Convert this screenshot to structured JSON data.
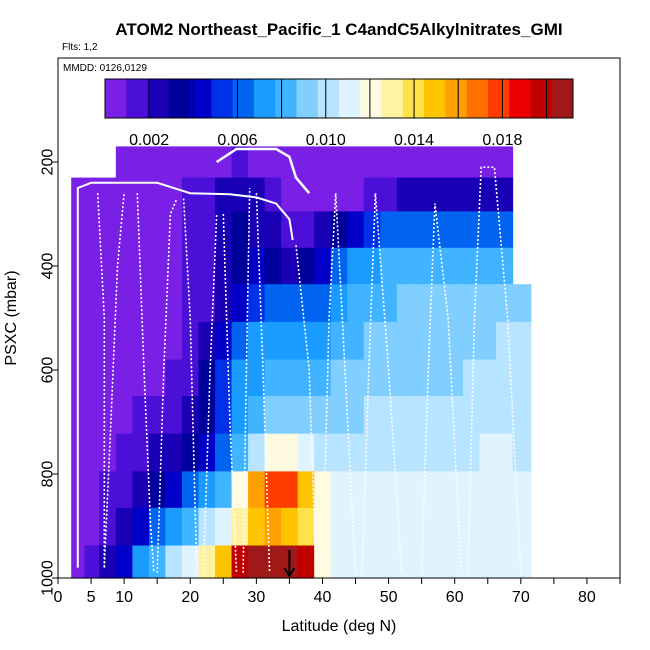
{
  "chart_data": {
    "type": "heatmap",
    "title": "ATOM2 Northeast_Pacific_1 C4andC5Alkylnitrates_GMI",
    "annotations": {
      "flights": "Flts: 1,2",
      "dates": "MMDD: 0126,0129"
    },
    "xlabel": "Latitude (deg N)",
    "ylabel": "PSXC (mbar)",
    "xlim": [
      0,
      85
    ],
    "ylim": [
      1000,
      0
    ],
    "xticks": [
      0,
      5,
      10,
      20,
      30,
      40,
      50,
      60,
      70,
      80
    ],
    "yticks": [
      200,
      400,
      600,
      800,
      1000
    ],
    "colorbar": {
      "min": 0.0,
      "max": 0.0212,
      "ticks": [
        0.002,
        0.006,
        0.01,
        0.014,
        0.018
      ],
      "tick_labels": [
        "0.002",
        "0.006",
        "0.010",
        "0.014",
        "0.018"
      ],
      "colors": [
        "#7a1fe6",
        "#4b0fd8",
        "#1a00b4",
        "#00009a",
        "#0000c8",
        "#0030e8",
        "#0064f0",
        "#1a9cff",
        "#40b4ff",
        "#80cfff",
        "#b8e4ff",
        "#e0f4ff",
        "#fffbe0",
        "#fff2a0",
        "#ffe24a",
        "#ffc400",
        "#ffa000",
        "#ff7000",
        "#ff3c00",
        "#ee0000",
        "#c00000",
        "#a01818"
      ]
    },
    "pressure_levels": [
      200,
      260,
      330,
      400,
      470,
      545,
      615,
      685,
      760,
      830,
      900,
      975
    ],
    "latitude_bins": [
      3,
      5,
      7.5,
      10,
      12.5,
      15,
      17.5,
      20,
      22.5,
      25,
      27.5,
      30,
      32.5,
      35,
      37.5,
      40,
      42.5,
      45,
      47.5,
      50,
      52.5,
      55,
      57.5,
      60,
      62.5,
      65,
      67.5,
      70
    ],
    "series": [
      {
        "pressure": 200,
        "values": [
          null,
          null,
          null,
          0.0005,
          0.0005,
          0.0005,
          0.0005,
          0.0005,
          0.0006,
          0.0008,
          0.001,
          0.0007,
          0.0005,
          0.0005,
          0.0005,
          0.0005,
          0.0005,
          0.0005,
          0.0005,
          0.0005,
          0.0005,
          0.0005,
          0.0005,
          0.0005,
          0.0005,
          0.0005,
          0.0005,
          null
        ]
      },
      {
        "pressure": 260,
        "values": [
          0.0005,
          0.0005,
          0.0005,
          0.0005,
          0.0005,
          0.0006,
          0.0007,
          0.001,
          0.0015,
          0.002,
          0.0022,
          0.002,
          0.0012,
          0.0009,
          0.0008,
          0.0008,
          0.0008,
          0.0009,
          0.001,
          0.0014,
          0.002,
          0.0022,
          0.0024,
          0.0025,
          0.0024,
          0.0024,
          0.0028,
          null
        ]
      },
      {
        "pressure": 330,
        "values": [
          0.0005,
          0.0005,
          0.0005,
          0.0005,
          0.0005,
          0.0006,
          0.0007,
          0.001,
          0.0015,
          0.0025,
          0.003,
          0.0028,
          0.0022,
          0.0016,
          0.0018,
          0.0022,
          0.0035,
          0.0045,
          0.0052,
          0.0058,
          0.006,
          0.0062,
          0.0062,
          0.006,
          0.006,
          0.0062,
          0.0065,
          null
        ]
      },
      {
        "pressure": 400,
        "values": [
          0.0005,
          0.0005,
          0.0005,
          0.0005,
          0.0006,
          0.0006,
          0.0007,
          0.001,
          0.0016,
          0.0025,
          0.0035,
          0.0042,
          0.0035,
          0.0028,
          0.0035,
          0.0048,
          0.0062,
          0.007,
          0.0075,
          0.008,
          0.0082,
          0.0082,
          0.008,
          0.008,
          0.0082,
          0.0084,
          0.0086,
          null
        ]
      },
      {
        "pressure": 470,
        "values": [
          0.0005,
          0.0005,
          0.0005,
          0.0005,
          0.0006,
          0.0006,
          0.0008,
          0.001,
          0.0016,
          0.0028,
          0.0042,
          0.0055,
          0.0062,
          0.0058,
          0.006,
          0.0066,
          0.0072,
          0.0078,
          0.0082,
          0.0086,
          0.0088,
          0.0088,
          0.0088,
          0.0088,
          0.009,
          0.0092,
          0.0094,
          0.0095
        ]
      },
      {
        "pressure": 545,
        "values": [
          0.0005,
          0.0005,
          0.0005,
          0.0005,
          0.0006,
          0.0007,
          0.0008,
          0.0012,
          0.0022,
          0.004,
          0.0058,
          0.0068,
          0.007,
          0.0068,
          0.007,
          0.0075,
          0.008,
          0.0085,
          0.0088,
          0.009,
          0.0092,
          0.0092,
          0.0092,
          0.0092,
          0.0094,
          0.0096,
          0.0098,
          0.0098
        ]
      },
      {
        "pressure": 615,
        "values": [
          0.0005,
          0.0005,
          0.0006,
          0.0006,
          0.0007,
          0.0008,
          0.001,
          0.0018,
          0.0035,
          0.0055,
          0.0068,
          0.0076,
          0.008,
          0.008,
          0.0082,
          0.0085,
          0.0088,
          0.009,
          0.0092,
          0.0094,
          0.0095,
          0.0095,
          0.0096,
          0.0096,
          0.0098,
          0.01,
          0.0102,
          0.01
        ]
      },
      {
        "pressure": 685,
        "values": [
          0.0005,
          0.0005,
          0.0006,
          0.0007,
          0.001,
          0.0015,
          0.0018,
          0.0022,
          0.0035,
          0.0055,
          0.0072,
          0.0085,
          0.009,
          0.0092,
          0.0094,
          0.0095,
          0.0096,
          0.0096,
          0.0097,
          0.0098,
          0.0099,
          0.0099,
          0.01,
          0.01,
          0.0102,
          0.0103,
          0.0104,
          0.0102
        ]
      },
      {
        "pressure": 760,
        "values": [
          0.0005,
          0.0006,
          0.0008,
          0.0012,
          0.0018,
          0.0022,
          0.0025,
          0.0032,
          0.0045,
          0.006,
          0.0085,
          0.0105,
          0.0118,
          0.012,
          0.0112,
          0.0105,
          0.0102,
          0.0102,
          0.0102,
          0.0103,
          0.0103,
          0.0104,
          0.0104,
          0.0105,
          0.0105,
          0.0106,
          0.0106,
          0.0105
        ]
      },
      {
        "pressure": 830,
        "values": [
          0.0005,
          0.0006,
          0.001,
          0.0018,
          0.0026,
          0.0034,
          0.0045,
          0.0058,
          0.007,
          0.0085,
          0.0118,
          0.016,
          0.0182,
          0.0178,
          0.015,
          0.0118,
          0.0108,
          0.0106,
          0.0106,
          0.0106,
          0.0106,
          0.0107,
          0.0107,
          0.0107,
          0.0108,
          0.0108,
          0.0108,
          0.0107
        ]
      },
      {
        "pressure": 900,
        "values": [
          0.0005,
          0.0008,
          0.0015,
          0.0028,
          0.0042,
          0.0058,
          0.0072,
          0.0085,
          0.0098,
          0.011,
          0.0128,
          0.0148,
          0.0158,
          0.0152,
          0.0138,
          0.0118,
          0.011,
          0.0108,
          0.0108,
          0.0108,
          0.0108,
          0.0108,
          0.0108,
          0.0109,
          0.0109,
          0.0109,
          0.0109,
          0.0108
        ]
      },
      {
        "pressure": 975,
        "values": [
          0.0006,
          0.001,
          0.0025,
          0.0048,
          0.007,
          0.0085,
          0.0098,
          0.0112,
          0.0128,
          0.015,
          0.0195,
          0.021,
          0.021,
          0.021,
          0.0195,
          0.0125,
          0.0112,
          0.011,
          0.011,
          0.011,
          0.011,
          0.011,
          0.011,
          0.011,
          0.011,
          0.011,
          0.011,
          0.011
        ]
      }
    ],
    "flight_track": {
      "solid": [
        [
          3,
          980
        ],
        [
          3,
          250
        ],
        [
          5,
          240
        ],
        [
          8,
          240
        ],
        [
          15,
          240
        ],
        [
          20,
          260
        ],
        [
          26,
          262
        ],
        [
          30,
          268
        ],
        [
          33,
          280
        ],
        [
          35,
          310
        ],
        [
          35.5,
          350
        ]
      ],
      "cruise": [
        [
          24,
          200
        ],
        [
          27,
          175
        ],
        [
          33,
          175
        ],
        [
          35,
          190
        ],
        [
          36,
          230
        ],
        [
          38,
          260
        ]
      ],
      "profiles": [
        [
          [
            6,
            260
          ],
          [
            7,
            500
          ],
          [
            7,
            780
          ],
          [
            7,
            980
          ]
        ],
        [
          [
            7,
            980
          ],
          [
            8,
            700
          ],
          [
            9,
            400
          ],
          [
            10,
            260
          ]
        ],
        [
          [
            12,
            260
          ],
          [
            13,
            600
          ],
          [
            14,
            900
          ],
          [
            14.5,
            990
          ]
        ],
        [
          [
            15,
            990
          ],
          [
            16,
            600
          ],
          [
            17,
            300
          ],
          [
            18,
            270
          ]
        ],
        [
          [
            19,
            270
          ],
          [
            20,
            500
          ],
          [
            21,
            990
          ]
        ],
        [
          [
            22,
            990
          ],
          [
            23,
            600
          ],
          [
            24,
            300
          ]
        ],
        [
          [
            25,
            300
          ],
          [
            26,
            700
          ],
          [
            27,
            990
          ]
        ],
        [
          [
            28,
            990
          ],
          [
            28.5,
            600
          ],
          [
            29,
            250
          ]
        ],
        [
          [
            30,
            260
          ],
          [
            31,
            600
          ],
          [
            32,
            990
          ]
        ],
        [
          [
            36,
            360
          ],
          [
            38,
            600
          ],
          [
            39,
            990
          ]
        ],
        [
          [
            40,
            990
          ],
          [
            41,
            500
          ],
          [
            42,
            260
          ],
          [
            43,
            500
          ],
          [
            45,
            990
          ]
        ],
        [
          [
            46,
            990
          ],
          [
            47,
            600
          ],
          [
            48,
            260
          ],
          [
            50,
            600
          ],
          [
            52,
            990
          ]
        ],
        [
          [
            55,
            990
          ],
          [
            56,
            600
          ],
          [
            57,
            280
          ],
          [
            59,
            500
          ],
          [
            61,
            990
          ]
        ],
        [
          [
            62,
            990
          ],
          [
            63,
            500
          ],
          [
            64,
            210
          ],
          [
            66,
            210
          ],
          [
            68,
            500
          ],
          [
            70,
            990
          ]
        ]
      ]
    },
    "marker": {
      "latitude": 35,
      "pressure": 1000
    }
  }
}
